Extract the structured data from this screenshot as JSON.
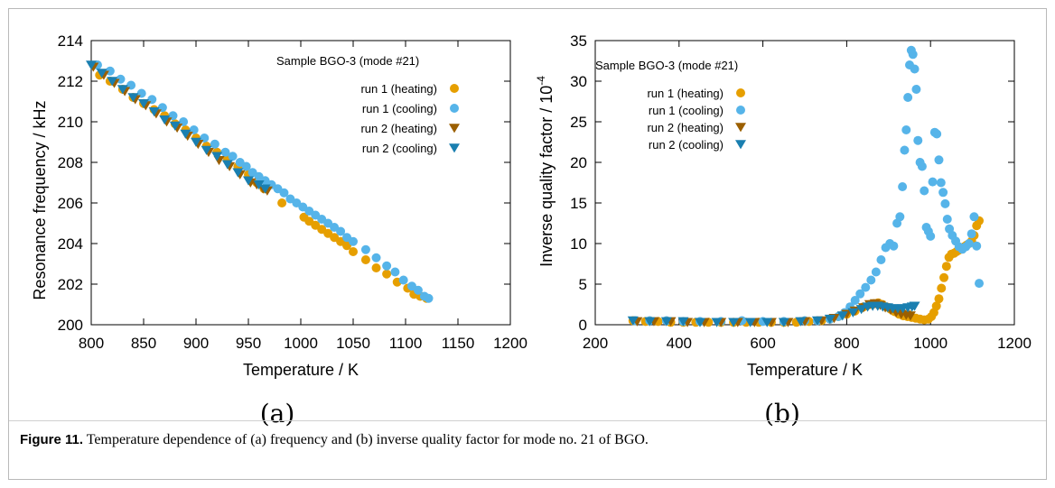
{
  "caption": {
    "label": "Figure 11.",
    "text": "Temperature dependence of (a) frequency and (b) inverse quality factor for mode no. 21 of BGO."
  },
  "colors": {
    "run1_heating": "#e69f00",
    "run1_cooling": "#56b4e9",
    "run2_heating": "#9b5f00",
    "run2_cooling": "#1a7fb0"
  },
  "chart_data": [
    {
      "type": "scatter",
      "panel_label": "(a)",
      "title": "Sample BGO-3 (mode #21)",
      "xlabel": "Temperature / K",
      "ylabel": "Resonance frequency / kHz",
      "xlim": [
        800,
        1200
      ],
      "ylim": [
        200,
        214
      ],
      "xticks": [
        "800",
        "850",
        "900",
        "950",
        "1000",
        "1050",
        "1100",
        "1150",
        "1200"
      ],
      "yticks": [
        "200",
        "202",
        "204",
        "206",
        "208",
        "210",
        "212",
        "214"
      ],
      "legend_position": "top-right",
      "grid": false,
      "series": [
        {
          "name": "run 1 (heating)",
          "marker": "circle",
          "color": "#e69f00",
          "x": [
            808,
            818,
            830,
            840,
            850,
            860,
            870,
            880,
            890,
            900,
            910,
            920,
            930,
            940,
            950,
            958,
            965,
            982,
            1003,
            1008,
            1014,
            1020,
            1026,
            1032,
            1038,
            1044,
            1050,
            1062,
            1072,
            1082,
            1092,
            1102,
            1108,
            1114,
            1120
          ],
          "y": [
            212.3,
            212.0,
            211.6,
            211.2,
            210.9,
            210.6,
            210.3,
            209.9,
            209.6,
            209.2,
            208.8,
            208.5,
            208.2,
            207.8,
            207.4,
            207.0,
            206.7,
            206.0,
            205.3,
            205.1,
            204.9,
            204.7,
            204.5,
            204.3,
            204.1,
            203.9,
            203.6,
            203.2,
            202.8,
            202.5,
            202.1,
            201.8,
            201.5,
            201.4,
            201.3
          ]
        },
        {
          "name": "run 1 (cooling)",
          "marker": "circle",
          "color": "#56b4e9",
          "x": [
            806,
            818,
            828,
            838,
            848,
            858,
            868,
            878,
            888,
            898,
            908,
            918,
            928,
            935,
            942,
            948,
            954,
            960,
            966,
            972,
            978,
            984,
            990,
            996,
            1002,
            1008,
            1014,
            1020,
            1026,
            1032,
            1038,
            1044,
            1050,
            1062,
            1072,
            1082,
            1090,
            1098,
            1106,
            1112,
            1118,
            1122
          ],
          "y": [
            212.8,
            212.5,
            212.1,
            211.8,
            211.4,
            211.1,
            210.7,
            210.3,
            210.0,
            209.6,
            209.2,
            208.9,
            208.5,
            208.3,
            208.0,
            207.8,
            207.5,
            207.3,
            207.1,
            206.9,
            206.7,
            206.5,
            206.2,
            206.0,
            205.8,
            205.6,
            205.4,
            205.2,
            205.0,
            204.8,
            204.6,
            204.3,
            204.1,
            203.7,
            203.3,
            202.9,
            202.6,
            202.2,
            201.9,
            201.7,
            201.4,
            201.3
          ]
        },
        {
          "name": "run 2 (heating)",
          "marker": "triangle-down",
          "color": "#9b5f00",
          "x": [
            802,
            812,
            822,
            832,
            842,
            852,
            862,
            872,
            882,
            892,
            902,
            912,
            922,
            932,
            942,
            952,
            958,
            964,
            968
          ],
          "y": [
            212.7,
            212.3,
            211.9,
            211.5,
            211.1,
            210.8,
            210.4,
            210.0,
            209.7,
            209.3,
            208.9,
            208.5,
            208.1,
            207.8,
            207.4,
            207.0,
            206.9,
            206.7,
            206.6
          ]
        },
        {
          "name": "run 2 (cooling)",
          "marker": "triangle-down",
          "color": "#1a7fb0",
          "x": [
            800,
            810,
            820,
            830,
            840,
            850,
            860,
            870,
            880,
            890,
            900,
            910,
            920,
            930,
            940,
            950,
            960,
            966
          ],
          "y": [
            212.8,
            212.4,
            212.0,
            211.6,
            211.2,
            210.9,
            210.5,
            210.1,
            209.8,
            209.4,
            209.0,
            208.6,
            208.3,
            207.9,
            207.5,
            207.1,
            206.9,
            206.7
          ]
        }
      ]
    },
    {
      "type": "scatter",
      "panel_label": "(b)",
      "title": "Sample BGO-3 (mode #21)",
      "xlabel": "Temperature / K",
      "ylabel": "Inverse quality factor / 10⁻⁴",
      "ylabel_main": "Inverse quality factor / 10",
      "ylabel_sup": "-4",
      "xlim": [
        200,
        1200
      ],
      "ylim": [
        0,
        35
      ],
      "xticks": [
        "200",
        "400",
        "600",
        "800",
        "1000",
        "1200"
      ],
      "yticks": [
        "0",
        "5",
        "10",
        "15",
        "20",
        "25",
        "30",
        "35"
      ],
      "legend_position": "top-left",
      "grid": false,
      "series": [
        {
          "name": "run 1 (heating)",
          "marker": "circle",
          "color": "#e69f00",
          "x": [
            290,
            320,
            350,
            380,
            410,
            440,
            470,
            500,
            530,
            560,
            590,
            620,
            650,
            680,
            710,
            740,
            760,
            780,
            800,
            820,
            840,
            855,
            865,
            875,
            885,
            895,
            905,
            915,
            925,
            935,
            945,
            955,
            965,
            975,
            985,
            995,
            1002,
            1008,
            1014,
            1020,
            1026,
            1032,
            1038,
            1044,
            1050,
            1056,
            1062,
            1068,
            1074,
            1080,
            1086,
            1092,
            1098,
            1104,
            1110,
            1116
          ],
          "y": [
            0.5,
            0.4,
            0.4,
            0.3,
            0.3,
            0.3,
            0.3,
            0.3,
            0.3,
            0.3,
            0.3,
            0.3,
            0.3,
            0.3,
            0.4,
            0.5,
            0.7,
            1.0,
            1.3,
            1.7,
            2.2,
            2.5,
            2.6,
            2.7,
            2.5,
            2.2,
            1.9,
            1.6,
            1.3,
            1.1,
            1.0,
            0.9,
            0.8,
            0.7,
            0.6,
            0.7,
            1.0,
            1.5,
            2.3,
            3.2,
            4.5,
            5.8,
            7.2,
            8.3,
            8.7,
            8.8,
            9.0,
            9.2,
            9.4,
            9.6,
            9.8,
            10.0,
            10.3,
            11.0,
            12.2,
            12.8
          ]
        },
        {
          "name": "run 1 (cooling)",
          "marker": "circle",
          "color": "#56b4e9",
          "x": [
            295,
            330,
            370,
            410,
            450,
            500,
            550,
            600,
            650,
            700,
            730,
            760,
            780,
            795,
            808,
            820,
            832,
            845,
            858,
            870,
            882,
            893,
            903,
            912,
            920,
            927,
            933,
            938,
            942,
            946,
            950,
            954,
            958,
            962,
            966,
            970,
            975,
            980,
            985,
            990,
            995,
            1000,
            1005,
            1010,
            1015,
            1020,
            1025,
            1030,
            1035,
            1040,
            1045,
            1052,
            1060,
            1068,
            1076,
            1084,
            1092,
            1098,
            1104,
            1110,
            1116
          ],
          "y": [
            0.5,
            0.5,
            0.5,
            0.4,
            0.4,
            0.4,
            0.5,
            0.4,
            0.4,
            0.5,
            0.5,
            0.7,
            1.0,
            1.5,
            2.2,
            3.0,
            3.8,
            4.6,
            5.5,
            6.5,
            8.0,
            9.5,
            10.0,
            9.7,
            12.5,
            13.3,
            17.0,
            21.5,
            24.0,
            28.0,
            32.0,
            33.8,
            33.3,
            31.5,
            29.0,
            22.7,
            20.0,
            19.5,
            16.5,
            12.0,
            11.5,
            10.9,
            17.6,
            23.7,
            23.5,
            20.3,
            17.5,
            16.3,
            14.9,
            13.0,
            11.8,
            11.0,
            10.3,
            9.6,
            9.3,
            9.6,
            10.0,
            11.2,
            13.3,
            9.7,
            5.1
          ]
        },
        {
          "name": "run 2 (heating)",
          "marker": "triangle-down",
          "color": "#9b5f00",
          "x": [
            300,
            340,
            380,
            420,
            460,
            500,
            540,
            580,
            620,
            660,
            700,
            740,
            770,
            800,
            820,
            840,
            855,
            868,
            880,
            892,
            905,
            918,
            930,
            942,
            952
          ],
          "y": [
            0.4,
            0.4,
            0.4,
            0.3,
            0.3,
            0.3,
            0.3,
            0.3,
            0.3,
            0.3,
            0.4,
            0.5,
            0.8,
            1.3,
            1.7,
            2.1,
            2.5,
            2.6,
            2.4,
            2.1,
            1.8,
            1.5,
            1.3,
            1.2,
            1.1
          ]
        },
        {
          "name": "run 2 (cooling)",
          "marker": "triangle-down",
          "color": "#1a7fb0",
          "x": [
            290,
            330,
            370,
            410,
            450,
            490,
            530,
            570,
            610,
            650,
            690,
            730,
            760,
            790,
            815,
            835,
            850,
            862,
            874,
            886,
            898,
            910,
            922,
            934,
            946,
            956,
            962
          ],
          "y": [
            0.5,
            0.4,
            0.4,
            0.4,
            0.3,
            0.3,
            0.3,
            0.3,
            0.3,
            0.3,
            0.4,
            0.5,
            0.7,
            1.1,
            1.5,
            1.9,
            2.2,
            2.3,
            2.3,
            2.2,
            2.1,
            2.0,
            2.0,
            2.0,
            2.1,
            2.2,
            2.3
          ]
        }
      ]
    }
  ]
}
